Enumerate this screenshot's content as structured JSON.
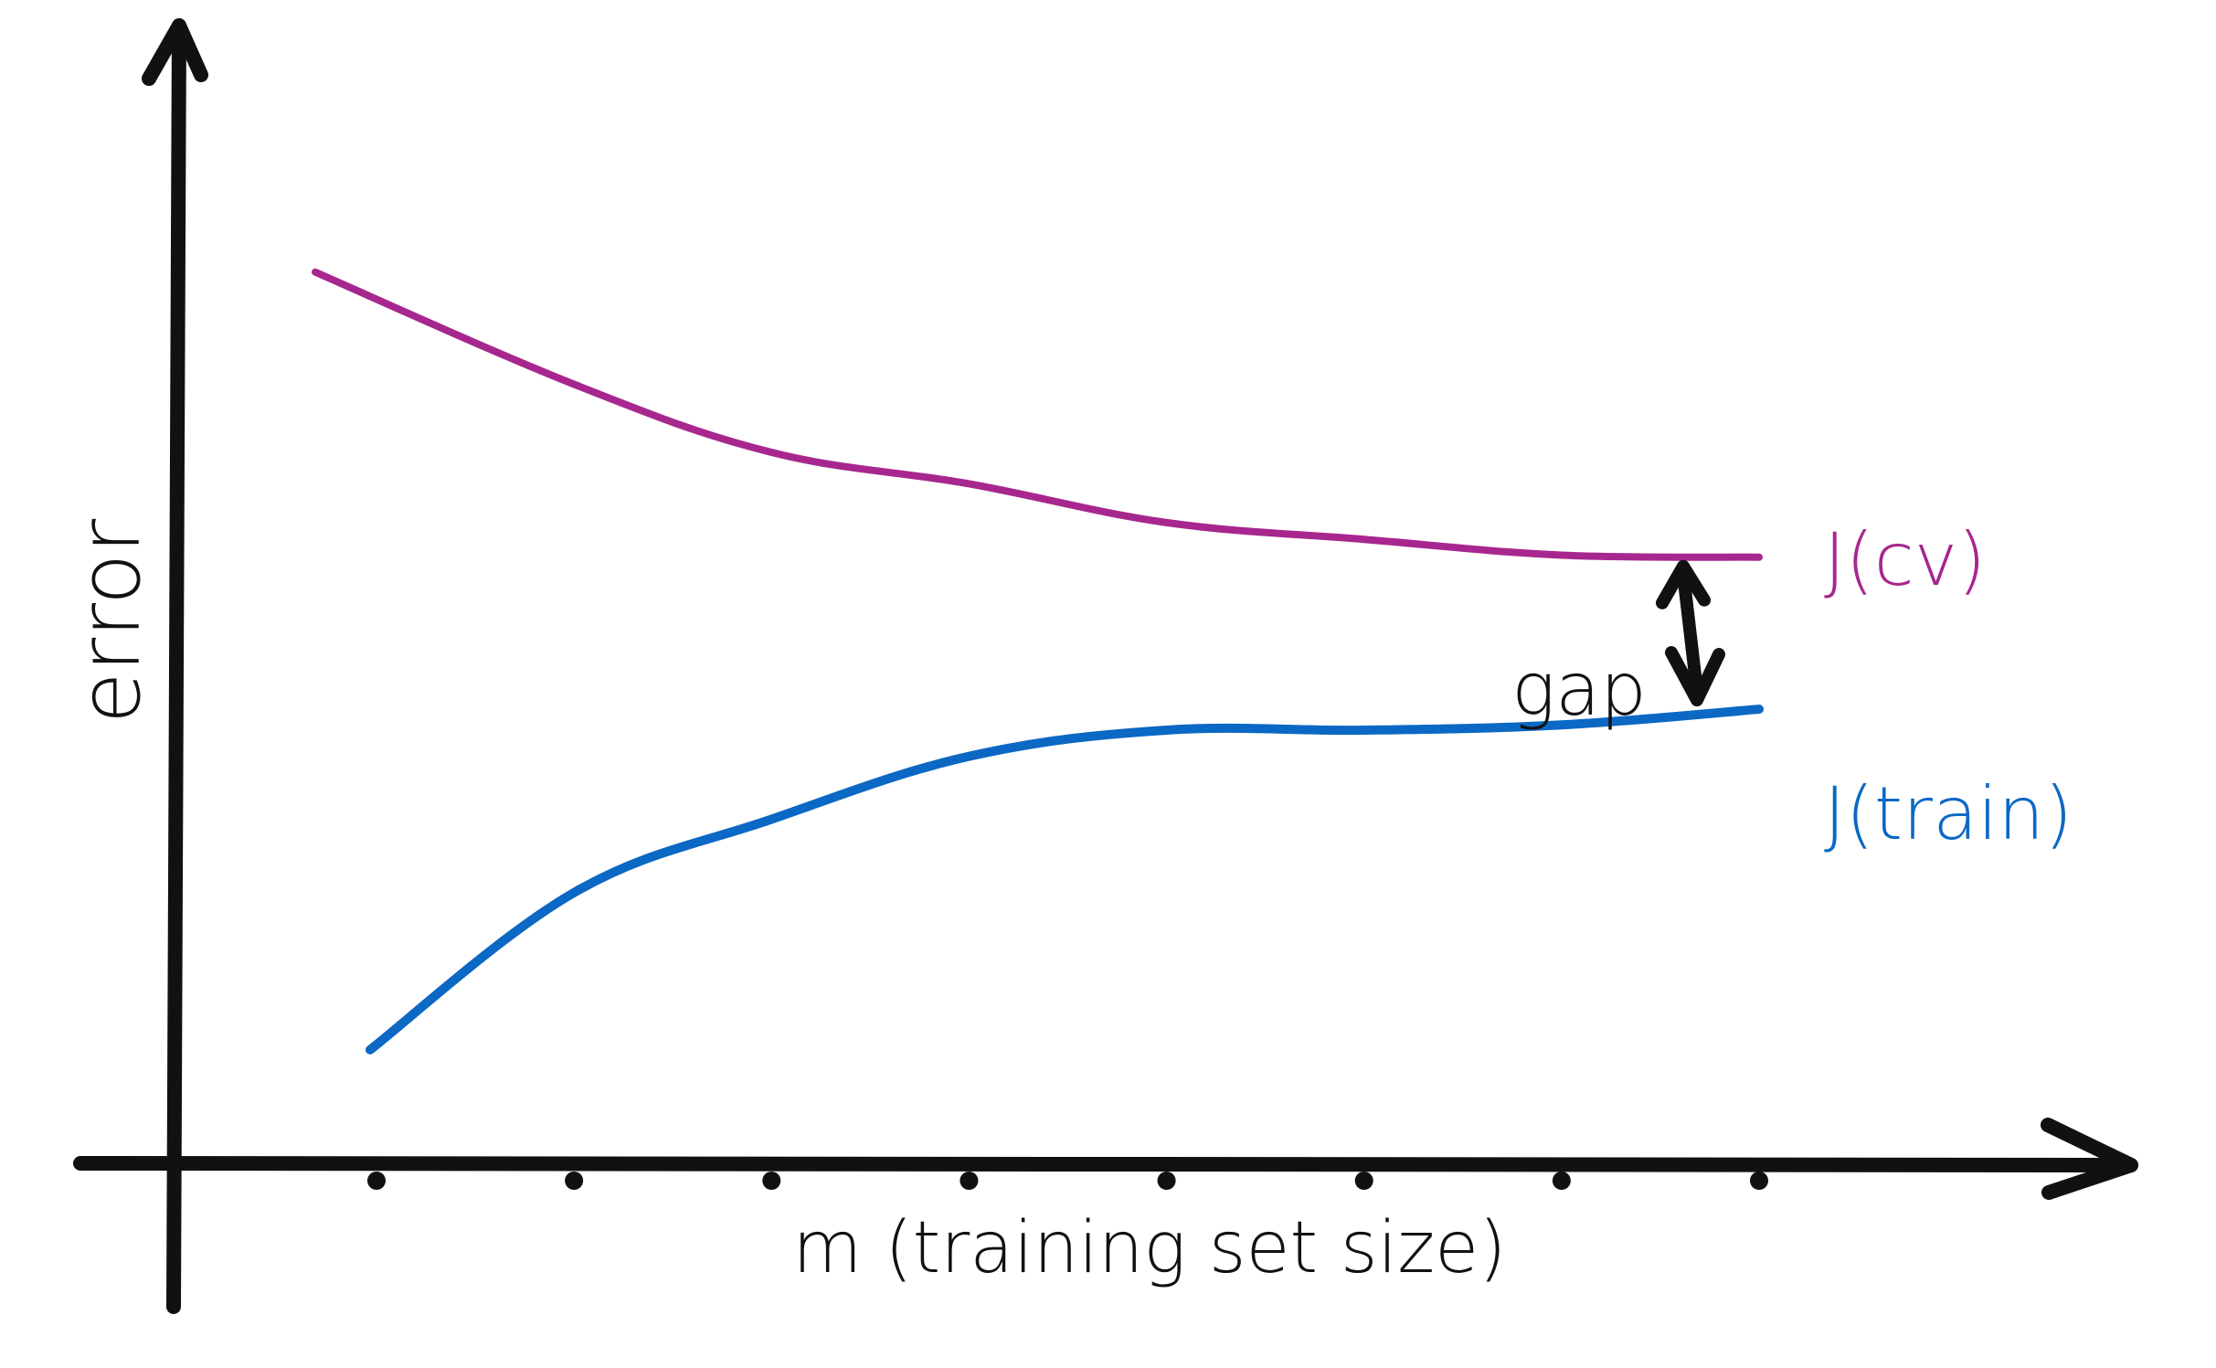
{
  "chart_data": {
    "type": "line",
    "title": "",
    "xlabel": "m (training set size)",
    "ylabel": "error",
    "x": [
      1,
      2,
      3,
      4,
      5,
      6,
      7,
      8
    ],
    "ylim": [
      0,
      10
    ],
    "grid": false,
    "legend": "inline-right",
    "series": [
      {
        "name": "J(cv)",
        "color": "#a7278f",
        "values": [
          8.52,
          7.45,
          6.8,
          6.5,
          6.13,
          5.97,
          5.82,
          5.8
        ]
      },
      {
        "name": "J(train)",
        "color": "#0b68c4",
        "values": [
          1.1,
          2.6,
          3.3,
          3.9,
          4.15,
          4.15,
          4.2,
          4.35
        ]
      }
    ],
    "annotations": [
      {
        "text": "gap",
        "color": "#111111"
      }
    ]
  }
}
